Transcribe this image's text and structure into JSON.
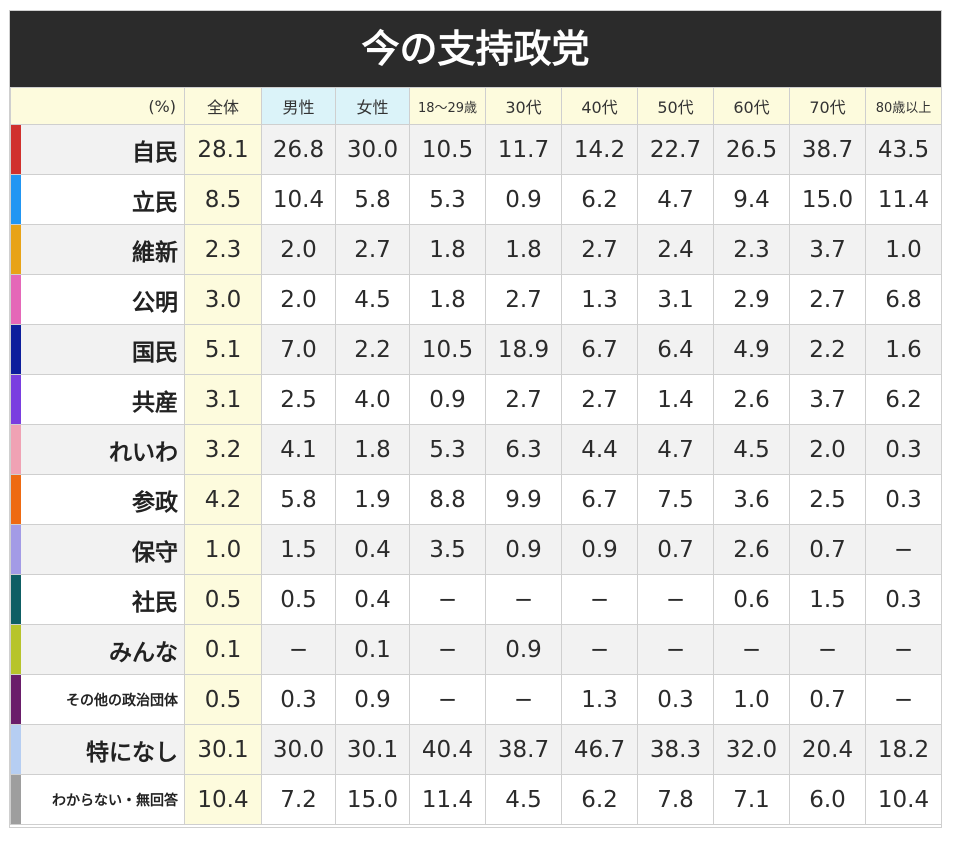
{
  "title": "今の支持政党",
  "columns": [
    "(%)",
    "全体",
    "男性",
    "女性",
    "18〜29歳",
    "30代",
    "40代",
    "50代",
    "60代",
    "70代",
    "80歳以上"
  ],
  "rows": [
    {
      "party": "自民",
      "color": "#d0312d",
      "values": [
        "28.1",
        "26.8",
        "30.0",
        "10.5",
        "11.7",
        "14.2",
        "22.7",
        "26.5",
        "38.7",
        "43.5"
      ]
    },
    {
      "party": "立民",
      "color": "#2196f3",
      "values": [
        "8.5",
        "10.4",
        "5.8",
        "5.3",
        "0.9",
        "6.2",
        "4.7",
        "9.4",
        "15.0",
        "11.4"
      ]
    },
    {
      "party": "維新",
      "color": "#e8a317",
      "values": [
        "2.3",
        "2.0",
        "2.7",
        "1.8",
        "1.8",
        "2.7",
        "2.4",
        "2.3",
        "3.7",
        "1.0"
      ]
    },
    {
      "party": "公明",
      "color": "#e567b8",
      "values": [
        "3.0",
        "2.0",
        "4.5",
        "1.8",
        "2.7",
        "1.3",
        "3.1",
        "2.9",
        "2.7",
        "6.8"
      ]
    },
    {
      "party": "国民",
      "color": "#0d1e9c",
      "values": [
        "5.1",
        "7.0",
        "2.2",
        "10.5",
        "18.9",
        "6.7",
        "6.4",
        "4.9",
        "2.2",
        "1.6"
      ]
    },
    {
      "party": "共産",
      "color": "#7a3ee0",
      "values": [
        "3.1",
        "2.5",
        "4.0",
        "0.9",
        "2.7",
        "2.7",
        "1.4",
        "2.6",
        "3.7",
        "6.2"
      ]
    },
    {
      "party": "れいわ",
      "color": "#f0a2b4",
      "values": [
        "3.2",
        "4.1",
        "1.8",
        "5.3",
        "6.3",
        "4.4",
        "4.7",
        "4.5",
        "2.0",
        "0.3"
      ]
    },
    {
      "party": "参政",
      "color": "#ee6a12",
      "values": [
        "4.2",
        "5.8",
        "1.9",
        "8.8",
        "9.9",
        "6.7",
        "7.5",
        "3.6",
        "2.5",
        "0.3"
      ]
    },
    {
      "party": "保守",
      "color": "#a39be6",
      "values": [
        "1.0",
        "1.5",
        "0.4",
        "3.5",
        "0.9",
        "0.9",
        "0.7",
        "2.6",
        "0.7",
        "−"
      ]
    },
    {
      "party": "社民",
      "color": "#0e5e64",
      "values": [
        "0.5",
        "0.5",
        "0.4",
        "−",
        "−",
        "−",
        "−",
        "0.6",
        "1.5",
        "0.3"
      ]
    },
    {
      "party": "みんな",
      "color": "#b7c42b",
      "values": [
        "0.1",
        "−",
        "0.1",
        "−",
        "0.9",
        "−",
        "−",
        "−",
        "−",
        "−"
      ]
    },
    {
      "party": "その他の政治団体",
      "color": "#6a1d6a",
      "values": [
        "0.5",
        "0.3",
        "0.9",
        "−",
        "−",
        "1.3",
        "0.3",
        "1.0",
        "0.7",
        "−"
      ]
    },
    {
      "party": "特になし",
      "color": "#b6cef2",
      "values": [
        "30.1",
        "30.0",
        "30.1",
        "40.4",
        "38.7",
        "46.7",
        "38.3",
        "32.0",
        "20.4",
        "18.2"
      ]
    },
    {
      "party": "わからない・無回答",
      "color": "#9e9e9e",
      "values": [
        "10.4",
        "7.2",
        "15.0",
        "11.4",
        "4.5",
        "6.2",
        "7.8",
        "7.1",
        "6.0",
        "10.4"
      ]
    }
  ],
  "chart_data": {
    "type": "table",
    "title": "今の支持政党",
    "unit": "(%)",
    "columns": [
      "全体",
      "男性",
      "女性",
      "18〜29歳",
      "30代",
      "40代",
      "50代",
      "60代",
      "70代",
      "80歳以上"
    ],
    "row_labels": [
      "自民",
      "立民",
      "維新",
      "公明",
      "国民",
      "共産",
      "れいわ",
      "参政",
      "保守",
      "社民",
      "みんな",
      "その他の政治団体",
      "特になし",
      "わからない・無回答"
    ],
    "values": [
      [
        28.1,
        26.8,
        30.0,
        10.5,
        11.7,
        14.2,
        22.7,
        26.5,
        38.7,
        43.5
      ],
      [
        8.5,
        10.4,
        5.8,
        5.3,
        0.9,
        6.2,
        4.7,
        9.4,
        15.0,
        11.4
      ],
      [
        2.3,
        2.0,
        2.7,
        1.8,
        1.8,
        2.7,
        2.4,
        2.3,
        3.7,
        1.0
      ],
      [
        3.0,
        2.0,
        4.5,
        1.8,
        2.7,
        1.3,
        3.1,
        2.9,
        2.7,
        6.8
      ],
      [
        5.1,
        7.0,
        2.2,
        10.5,
        18.9,
        6.7,
        6.4,
        4.9,
        2.2,
        1.6
      ],
      [
        3.1,
        2.5,
        4.0,
        0.9,
        2.7,
        2.7,
        1.4,
        2.6,
        3.7,
        6.2
      ],
      [
        3.2,
        4.1,
        1.8,
        5.3,
        6.3,
        4.4,
        4.7,
        4.5,
        2.0,
        0.3
      ],
      [
        4.2,
        5.8,
        1.9,
        8.8,
        9.9,
        6.7,
        7.5,
        3.6,
        2.5,
        0.3
      ],
      [
        1.0,
        1.5,
        0.4,
        3.5,
        0.9,
        0.9,
        0.7,
        2.6,
        0.7,
        null
      ],
      [
        0.5,
        0.5,
        0.4,
        null,
        null,
        null,
        null,
        0.6,
        1.5,
        0.3
      ],
      [
        0.1,
        null,
        0.1,
        null,
        0.9,
        null,
        null,
        null,
        null,
        null
      ],
      [
        0.5,
        0.3,
        0.9,
        null,
        null,
        1.3,
        0.3,
        1.0,
        0.7,
        null
      ],
      [
        30.1,
        30.0,
        30.1,
        40.4,
        38.7,
        46.7,
        38.3,
        32.0,
        20.4,
        18.2
      ],
      [
        10.4,
        7.2,
        15.0,
        11.4,
        4.5,
        6.2,
        7.8,
        7.1,
        6.0,
        10.4
      ]
    ]
  }
}
